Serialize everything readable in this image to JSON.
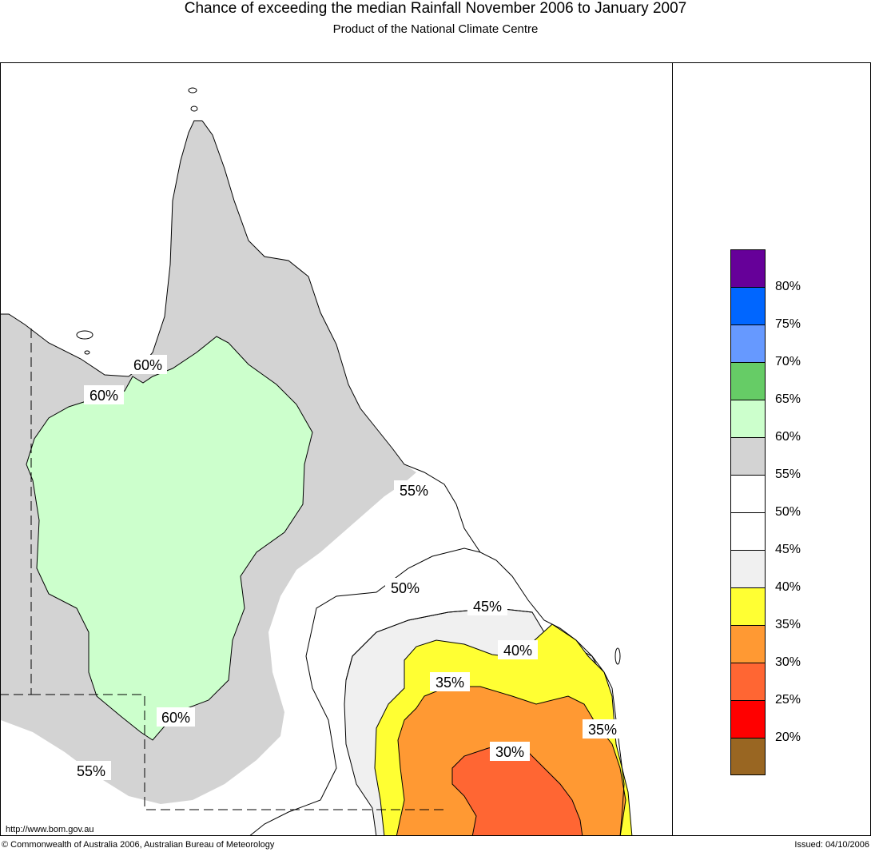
{
  "header": {
    "title": "Chance of exceeding the median Rainfall November 2006 to January 2007",
    "subtitle": "Product of the National Climate Centre"
  },
  "map": {
    "contour_labels": {
      "c60_gulf": "60%",
      "c60_west": "60%",
      "c60_south": "60%",
      "c55_east": "55%",
      "c55_southwest": "55%",
      "c50": "50%",
      "c45": "45%",
      "c40": "40%",
      "c35_west": "35%",
      "c35_east": "35%",
      "c30": "30%"
    },
    "url": "http://www.bom.gov.au",
    "fill_colors": {
      "above_60": "#ccffcc",
      "55_60": "#d3d3d3",
      "50_55": "#ffffff",
      "40_45": "#f0f0f0",
      "35_40": "#ffff33",
      "30_35": "#ff9933",
      "25_30": "#ff6633"
    }
  },
  "legend": {
    "colors": [
      "#660099",
      "#0066ff",
      "#6699ff",
      "#66cc66",
      "#ccffcc",
      "#d3d3d3",
      "#ffffff",
      "#ffffff",
      "#f0f0f0",
      "#ffff33",
      "#ff9933",
      "#ff6633",
      "#ff0000",
      "#996622"
    ],
    "labels": [
      "80%",
      "75%",
      "70%",
      "65%",
      "60%",
      "55%",
      "50%",
      "45%",
      "40%",
      "35%",
      "30%",
      "25%",
      "20%"
    ]
  },
  "footer": {
    "copyright": "© Commonwealth of Australia 2006, Australian Bureau of Meteorology",
    "issued": "Issued: 04/10/2006"
  }
}
